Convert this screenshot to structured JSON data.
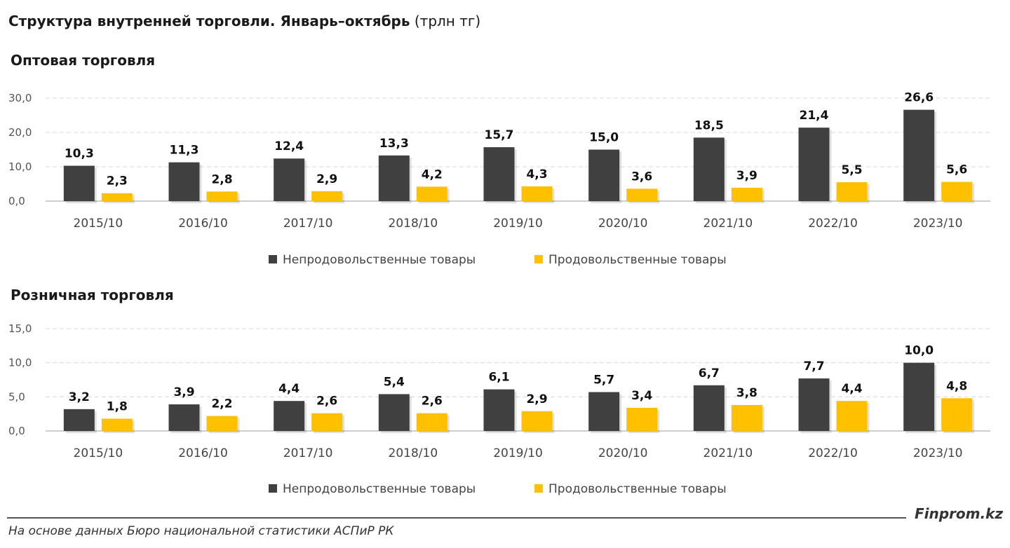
{
  "header": {
    "title_bold": "Структура внутренней торговли. Январь–октябрь",
    "title_unit": "(трлн тг)"
  },
  "colors": {
    "nonfood": "#404040",
    "food": "#FFC000",
    "grid": "#D9D9D9",
    "axis": "#BFBFBF"
  },
  "chart_data": [
    {
      "type": "bar",
      "title": "Оптовая торговля",
      "categories": [
        "2015/10",
        "2016/10",
        "2017/10",
        "2018/10",
        "2019/10",
        "2020/10",
        "2021/10",
        "2022/10",
        "2023/10"
      ],
      "series": [
        {
          "name": "Непродовольственные товары",
          "values": [
            10.3,
            11.3,
            12.4,
            13.3,
            15.7,
            15.0,
            18.5,
            21.4,
            26.6
          ]
        },
        {
          "name": "Продовольственные товары",
          "values": [
            2.3,
            2.8,
            2.9,
            4.2,
            4.3,
            3.6,
            3.9,
            5.5,
            5.6
          ]
        }
      ],
      "yticks": [
        "0,0",
        "10,0",
        "20,0",
        "30,0"
      ],
      "ylim": [
        0,
        30
      ],
      "grid": true,
      "legend": "bottom-center"
    },
    {
      "type": "bar",
      "title": "Розничная торговля",
      "categories": [
        "2015/10",
        "2016/10",
        "2017/10",
        "2018/10",
        "2019/10",
        "2020/10",
        "2021/10",
        "2022/10",
        "2023/10"
      ],
      "series": [
        {
          "name": "Непродовольственные товары",
          "values": [
            3.2,
            3.9,
            4.4,
            5.4,
            6.1,
            5.7,
            6.7,
            7.7,
            10.0
          ]
        },
        {
          "name": "Продовольственные товары",
          "values": [
            1.8,
            2.2,
            2.6,
            2.6,
            2.9,
            3.4,
            3.8,
            4.4,
            4.8
          ]
        }
      ],
      "yticks": [
        "0,0",
        "5,0",
        "10,0",
        "15,0"
      ],
      "ylim": [
        0,
        15
      ],
      "grid": true,
      "legend": "bottom-center"
    }
  ],
  "footer": {
    "brand": "Finprom.kz",
    "source": "На основе данных Бюро национальной статистики АСПиР РК"
  }
}
